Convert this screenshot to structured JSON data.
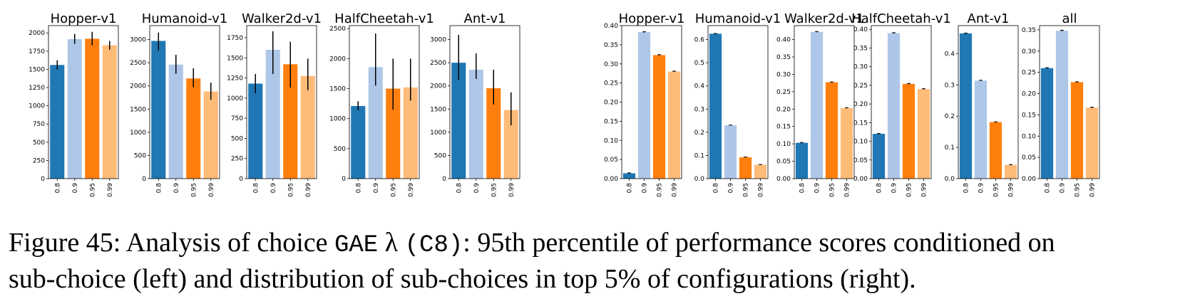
{
  "colors": [
    "#1f77b4",
    "#aec7e8",
    "#ff7f0e",
    "#ffbb78"
  ],
  "chart_data": [
    {
      "type": "bar",
      "group": "left",
      "title": "Hopper-v1",
      "categories": [
        "0.8",
        "0.9",
        "0.95",
        "0.99"
      ],
      "values": [
        1560,
        1915,
        1920,
        1830
      ],
      "errors": [
        [
          1500,
          1625
        ],
        [
          1850,
          1985
        ],
        [
          1830,
          2015
        ],
        [
          1770,
          1890
        ]
      ],
      "ylim": [
        0,
        2100
      ],
      "yticks": [
        "0",
        "250",
        "500",
        "750",
        "1000",
        "1250",
        "1500",
        "1750",
        "2000"
      ]
    },
    {
      "type": "bar",
      "group": "left",
      "title": "Humanoid-v1",
      "categories": [
        "0.8",
        "0.9",
        "0.95",
        "0.99"
      ],
      "values": [
        2970,
        2460,
        2160,
        1880
      ],
      "errors": [
        [
          2760,
          3150
        ],
        [
          2260,
          2670
        ],
        [
          1970,
          2380
        ],
        [
          1700,
          2070
        ]
      ],
      "ylim": [
        0,
        3300
      ],
      "yticks": [
        "0",
        "500",
        "1000",
        "1500",
        "2000",
        "2500",
        "3000"
      ]
    },
    {
      "type": "bar",
      "group": "left",
      "title": "Walker2d-v1",
      "categories": [
        "0.8",
        "0.9",
        "0.95",
        "0.99"
      ],
      "values": [
        1180,
        1600,
        1420,
        1275
      ],
      "errors": [
        [
          1060,
          1300
        ],
        [
          1300,
          1830
        ],
        [
          1130,
          1700
        ],
        [
          1100,
          1490
        ]
      ],
      "ylim": [
        0,
        1900
      ],
      "yticks": [
        "0",
        "250",
        "500",
        "750",
        "1000",
        "1250",
        "1500",
        "1750"
      ]
    },
    {
      "type": "bar",
      "group": "left",
      "title": "HalfCheetah-v1",
      "categories": [
        "0.8",
        "0.9",
        "0.95",
        "0.99"
      ],
      "values": [
        1210,
        1860,
        1500,
        1520
      ],
      "errors": [
        [
          1140,
          1290
        ],
        [
          1550,
          2420
        ],
        [
          1150,
          2000
        ],
        [
          1300,
          2000
        ]
      ],
      "ylim": [
        0,
        2550
      ],
      "yticks": [
        "0",
        "500",
        "1000",
        "1500",
        "2000",
        "2500"
      ]
    },
    {
      "type": "bar",
      "group": "left",
      "title": "Ant-v1",
      "categories": [
        "0.8",
        "0.9",
        "0.95",
        "0.99"
      ],
      "values": [
        2500,
        2350,
        1950,
        1480
      ],
      "errors": [
        [
          2130,
          3100
        ],
        [
          2150,
          2700
        ],
        [
          1600,
          2350
        ],
        [
          1150,
          1860
        ]
      ],
      "ylim": [
        0,
        3300
      ],
      "yticks": [
        "0",
        "500",
        "1000",
        "1500",
        "2000",
        "2500",
        "3000"
      ]
    },
    {
      "type": "bar",
      "group": "right",
      "title": "Hopper-v1",
      "categories": [
        "0.8",
        "0.9",
        "0.95",
        "0.99"
      ],
      "values": [
        0.014,
        0.383,
        0.323,
        0.28
      ],
      "errors": [
        [
          0.013,
          0.015
        ],
        [
          0.382,
          0.384
        ],
        [
          0.322,
          0.324
        ],
        [
          0.279,
          0.281
        ]
      ],
      "ylim": [
        0,
        0.4
      ],
      "yticks": [
        "0.00",
        "0.05",
        "0.10",
        "0.15",
        "0.20",
        "0.25",
        "0.30",
        "0.35",
        "0.40"
      ]
    },
    {
      "type": "bar",
      "group": "right",
      "title": "Humanoid-v1",
      "categories": [
        "0.8",
        "0.9",
        "0.95",
        "0.99"
      ],
      "values": [
        0.625,
        0.23,
        0.092,
        0.06
      ],
      "errors": [
        [
          0.624,
          0.626
        ],
        [
          0.229,
          0.231
        ],
        [
          0.091,
          0.093
        ],
        [
          0.059,
          0.061
        ]
      ],
      "ylim": [
        0,
        0.66
      ],
      "yticks": [
        "0.0",
        "0.1",
        "0.2",
        "0.3",
        "0.4",
        "0.5",
        "0.6"
      ]
    },
    {
      "type": "bar",
      "group": "right",
      "title": "Walker2d-v1",
      "categories": [
        "0.8",
        "0.9",
        "0.95",
        "0.99"
      ],
      "values": [
        0.103,
        0.422,
        0.277,
        0.203
      ],
      "errors": [
        [
          0.102,
          0.104
        ],
        [
          0.421,
          0.423
        ],
        [
          0.276,
          0.278
        ],
        [
          0.202,
          0.204
        ]
      ],
      "ylim": [
        0,
        0.44
      ],
      "yticks": [
        "0.00",
        "0.05",
        "0.10",
        "0.15",
        "0.20",
        "0.25",
        "0.30",
        "0.35",
        "0.40"
      ]
    },
    {
      "type": "bar",
      "group": "right",
      "title": "HalfCheetah-v1",
      "categories": [
        "0.8",
        "0.9",
        "0.95",
        "0.99"
      ],
      "values": [
        0.12,
        0.39,
        0.254,
        0.24
      ],
      "errors": [
        [
          0.119,
          0.121
        ],
        [
          0.389,
          0.391
        ],
        [
          0.253,
          0.255
        ],
        [
          0.239,
          0.241
        ]
      ],
      "ylim": [
        0,
        0.41
      ],
      "yticks": [
        "0.00",
        "0.05",
        "0.10",
        "0.15",
        "0.20",
        "0.25",
        "0.30",
        "0.35",
        "0.40"
      ]
    },
    {
      "type": "bar",
      "group": "right",
      "title": "Ant-v1",
      "categories": [
        "0.8",
        "0.9",
        "0.95",
        "0.99"
      ],
      "values": [
        0.465,
        0.314,
        0.181,
        0.044
      ],
      "errors": [
        [
          0.464,
          0.466
        ],
        [
          0.313,
          0.315
        ],
        [
          0.18,
          0.182
        ],
        [
          0.043,
          0.045
        ]
      ],
      "ylim": [
        0,
        0.49
      ],
      "yticks": [
        "0.0",
        "0.1",
        "0.2",
        "0.3",
        "0.4"
      ]
    },
    {
      "type": "bar",
      "group": "right",
      "title": "all",
      "categories": [
        "0.8",
        "0.9",
        "0.95",
        "0.99"
      ],
      "values": [
        0.26,
        0.348,
        0.227,
        0.167
      ],
      "errors": [
        [
          0.259,
          0.261
        ],
        [
          0.347,
          0.349
        ],
        [
          0.226,
          0.228
        ],
        [
          0.166,
          0.168
        ]
      ],
      "ylim": [
        0,
        0.36
      ],
      "yticks": [
        "0.00",
        "0.05",
        "0.10",
        "0.15",
        "0.20",
        "0.25",
        "0.30",
        "0.35"
      ]
    }
  ],
  "caption": {
    "prefix": "Figure 45: Analysis of choice ",
    "code1": "GAE",
    "symbol": " λ ",
    "code2": "(C8)",
    "rest": ": 95th percentile of performance scores conditioned on",
    "line2": "sub-choice (left) and distribution of sub-choices in top 5% of configurations (right)."
  }
}
